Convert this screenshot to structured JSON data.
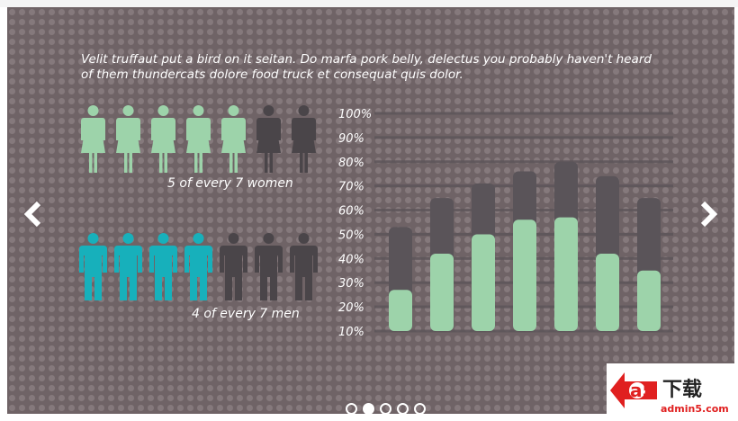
{
  "slide": {
    "intro_text": "Velit truffaut put a bird on it seitan. Do marfa pork belly, delectus you probably haven't heard of them thundercats dolore food truck et consequat quis dolor.",
    "women": {
      "caption": "5 of every 7 women",
      "highlighted": 5,
      "total": 7,
      "color_on": "#9dd3aa",
      "color_off": "#4a4549"
    },
    "men": {
      "caption": "4 of every 7 men",
      "highlighted": 4,
      "total": 7,
      "color_on": "#17b0bb",
      "color_off": "#4a4549"
    }
  },
  "chart_data": {
    "type": "bar",
    "yticks": [
      "10%",
      "20%",
      "30%",
      "40%",
      "50%",
      "60%",
      "70%",
      "80%",
      "90%",
      "100%"
    ],
    "ylim": [
      10,
      100
    ],
    "grid": true,
    "bar_color": "#9dd3aa",
    "back_color": "#5a5459",
    "series": [
      {
        "values": [
          27,
          42,
          50,
          56,
          57,
          42,
          35
        ]
      },
      {
        "values": [
          53,
          65,
          71,
          76,
          80,
          74,
          65
        ]
      }
    ]
  },
  "navigation": {
    "prev_icon": "chevron-left-icon",
    "next_icon": "chevron-right-icon",
    "page_count": 5,
    "current_page": 2
  },
  "watermark": {
    "brand": "a5",
    "chinese": "下载",
    "domain": "admin5.com"
  }
}
